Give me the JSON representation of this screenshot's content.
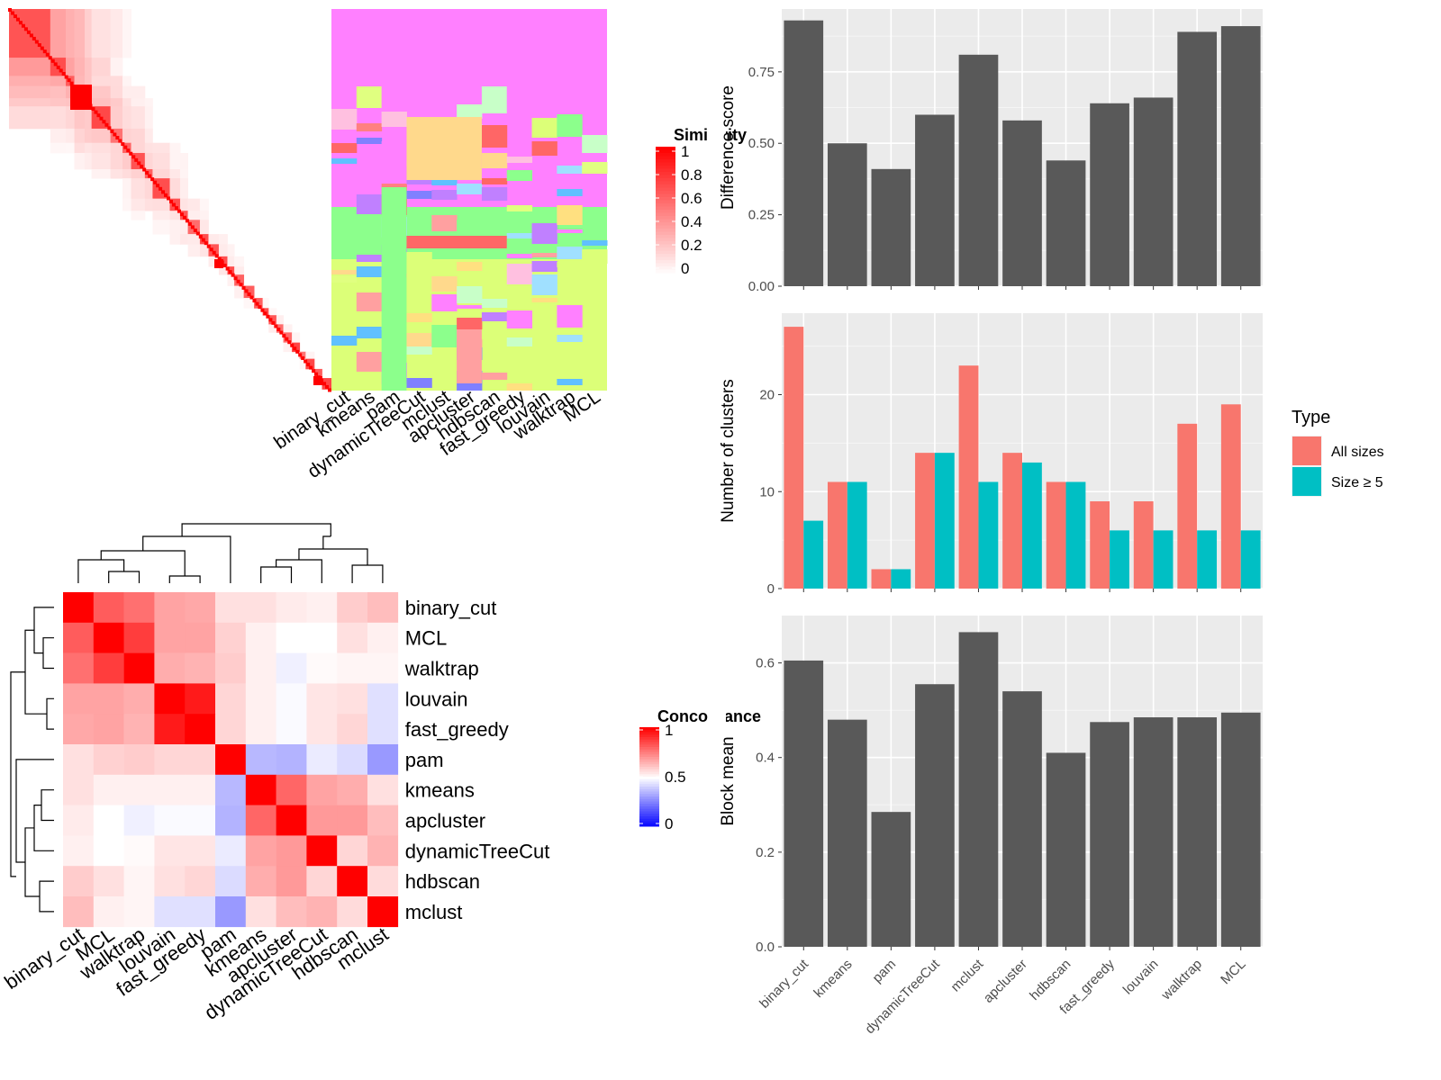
{
  "chart_data": [
    {
      "type": "heatmap",
      "id": "similarity-matrix",
      "description_hidden": true,
      "legend_title": "Similarity",
      "legend_ticks": [
        "1",
        "0.8",
        "0.6",
        "0.4",
        "0.2",
        "0"
      ],
      "legend_colors": {
        "low": "#ffffff",
        "high": "#ff0000"
      },
      "diag_blocks": [
        48,
        18,
        10,
        12,
        8,
        22,
        14,
        10,
        16,
        9,
        20,
        12,
        9,
        14,
        10,
        12,
        10,
        8,
        11,
        12,
        10,
        7,
        9,
        8,
        10,
        9,
        7,
        10,
        9,
        11
      ]
    },
    {
      "type": "heatmap",
      "id": "cluster-assignments",
      "categories": [
        "binary_cut",
        "kmeans",
        "pam",
        "dynamicTreeCut",
        "mclust",
        "apcluster",
        "hdbscan",
        "fast_greedy",
        "louvain",
        "walktrap",
        "MCL"
      ],
      "palette": [
        "#ff80ff",
        "#8cff8c",
        "#dcff78",
        "#ffd98c",
        "#8080ff",
        "#ff8080",
        "#c8ffc8",
        "#ffc0e0",
        "#e0ff80",
        "#ff6666",
        "#c080ff",
        "#a0e0ff",
        "#ffa0a0",
        "#ffe080",
        "#60c0ff"
      ]
    },
    {
      "type": "heatmap",
      "id": "concordance",
      "rows": [
        "binary_cut",
        "MCL",
        "walktrap",
        "louvain",
        "fast_greedy",
        "pam",
        "kmeans",
        "apcluster",
        "dynamicTreeCut",
        "hdbscan",
        "mclust"
      ],
      "columns": [
        "binary_cut",
        "MCL",
        "walktrap",
        "louvain",
        "fast_greedy",
        "pam",
        "kmeans",
        "apcluster",
        "dynamicTreeCut",
        "hdbscan",
        "mclust"
      ],
      "values": [
        [
          1.0,
          0.82,
          0.78,
          0.68,
          0.67,
          0.56,
          0.56,
          0.54,
          0.53,
          0.6,
          0.63
        ],
        [
          0.82,
          1.0,
          0.88,
          0.68,
          0.68,
          0.59,
          0.53,
          0.5,
          0.5,
          0.56,
          0.53
        ],
        [
          0.78,
          0.88,
          1.0,
          0.66,
          0.65,
          0.6,
          0.53,
          0.47,
          0.51,
          0.52,
          0.52
        ],
        [
          0.68,
          0.68,
          0.66,
          1.0,
          0.95,
          0.58,
          0.53,
          0.49,
          0.55,
          0.56,
          0.44
        ],
        [
          0.67,
          0.68,
          0.65,
          0.95,
          1.0,
          0.58,
          0.53,
          0.49,
          0.55,
          0.58,
          0.44
        ],
        [
          0.56,
          0.59,
          0.6,
          0.58,
          0.58,
          1.0,
          0.36,
          0.35,
          0.46,
          0.43,
          0.3
        ],
        [
          0.56,
          0.53,
          0.53,
          0.53,
          0.53,
          0.36,
          1.0,
          0.8,
          0.68,
          0.66,
          0.56
        ],
        [
          0.54,
          0.5,
          0.47,
          0.49,
          0.49,
          0.35,
          0.8,
          1.0,
          0.7,
          0.7,
          0.63
        ],
        [
          0.53,
          0.5,
          0.51,
          0.55,
          0.55,
          0.46,
          0.68,
          0.7,
          1.0,
          0.58,
          0.65
        ],
        [
          0.6,
          0.56,
          0.52,
          0.56,
          0.58,
          0.43,
          0.66,
          0.7,
          0.58,
          1.0,
          0.57
        ],
        [
          0.63,
          0.53,
          0.52,
          0.44,
          0.44,
          0.3,
          0.56,
          0.63,
          0.65,
          0.57,
          1.0
        ]
      ],
      "legend_title": "Concordance",
      "legend_ticks": [
        "1",
        "0.5",
        "0"
      ],
      "legend_colors": {
        "low": "#0000ff",
        "mid": "#ffffff",
        "high": "#ff0000"
      }
    },
    {
      "type": "bar",
      "id": "difference-score",
      "categories": [
        "binary_cut",
        "kmeans",
        "pam",
        "dynamicTreeCut",
        "mclust",
        "apcluster",
        "hdbscan",
        "fast_greedy",
        "louvain",
        "walktrap",
        "MCL"
      ],
      "values": [
        0.93,
        0.5,
        0.41,
        0.6,
        0.81,
        0.58,
        0.44,
        0.64,
        0.66,
        0.89,
        0.91
      ],
      "ylabel": "Difference score",
      "ylim": [
        0,
        0.97
      ],
      "yticks": [
        "0.00",
        "0.25",
        "0.50",
        "0.75"
      ],
      "bar_color": "#595959",
      "panel_color": "#ebebeb"
    },
    {
      "type": "bar",
      "id": "number-of-clusters",
      "categories": [
        "binary_cut",
        "kmeans",
        "pam",
        "dynamicTreeCut",
        "mclust",
        "apcluster",
        "hdbscan",
        "fast_greedy",
        "louvain",
        "walktrap",
        "MCL"
      ],
      "series": [
        {
          "name": "All sizes",
          "color": "#f8766d",
          "values": [
            27,
            11,
            2,
            14,
            23,
            14,
            11,
            9,
            9,
            17,
            19
          ]
        },
        {
          "name": "Size ≥ 5",
          "color": "#00bfc4",
          "values": [
            7,
            11,
            2,
            14,
            11,
            13,
            11,
            6,
            6,
            6,
            6
          ]
        }
      ],
      "ylabel": "Number of clusters",
      "ylim": [
        0,
        28.4
      ],
      "yticks": [
        "0",
        "10",
        "20"
      ],
      "legend_title": "Type",
      "legend_position": "right",
      "panel_color": "#ebebeb"
    },
    {
      "type": "bar",
      "id": "block-mean",
      "categories": [
        "binary_cut",
        "kmeans",
        "pam",
        "dynamicTreeCut",
        "mclust",
        "apcluster",
        "hdbscan",
        "fast_greedy",
        "louvain",
        "walktrap",
        "MCL"
      ],
      "values": [
        0.605,
        0.48,
        0.285,
        0.555,
        0.665,
        0.54,
        0.41,
        0.475,
        0.485,
        0.485,
        0.495
      ],
      "ylabel": "Block mean",
      "ylim": [
        0,
        0.7
      ],
      "yticks": [
        "0.0",
        "0.2",
        "0.4",
        "0.6"
      ],
      "bar_color": "#595959",
      "panel_color": "#ebebeb"
    }
  ]
}
